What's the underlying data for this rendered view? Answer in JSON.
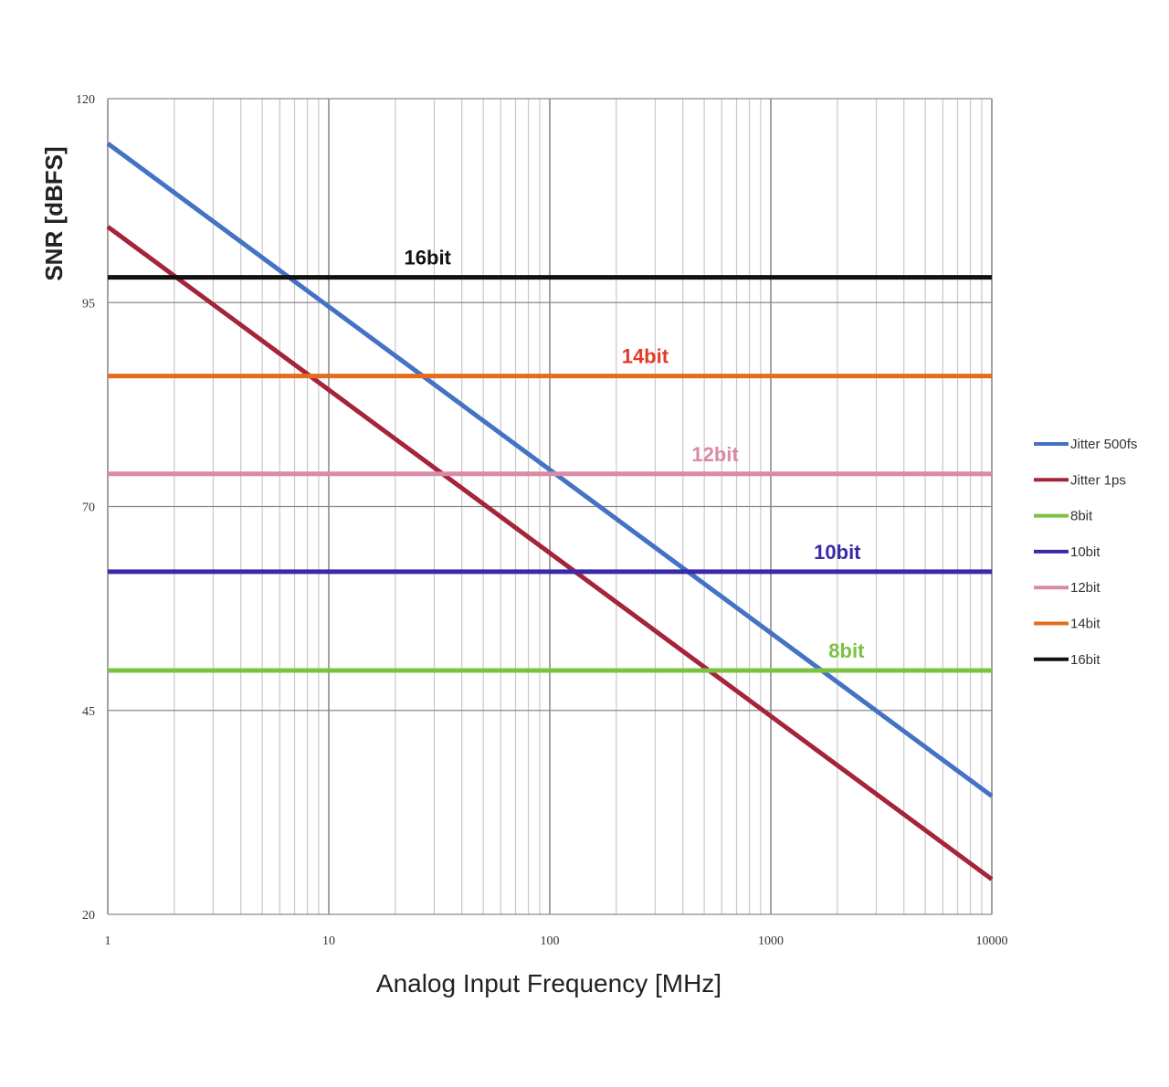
{
  "chart_data": {
    "type": "line",
    "xlabel": "Analog Input Frequency [MHz]",
    "ylabel": "SNR [dBFS]",
    "xscale": "log",
    "xlim": [
      1,
      10000
    ],
    "ylim": [
      20,
      120
    ],
    "x_ticks": [
      {
        "value": 1,
        "label": "1"
      },
      {
        "value": 10,
        "label": "10"
      },
      {
        "value": 100,
        "label": "100"
      },
      {
        "value": 1000,
        "label": "1000"
      },
      {
        "value": 10000,
        "label": "10000"
      }
    ],
    "y_ticks": [
      {
        "value": 20,
        "label": "20"
      },
      {
        "value": 45,
        "label": "45"
      },
      {
        "value": 70,
        "label": "70"
      },
      {
        "value": 95,
        "label": "95"
      },
      {
        "value": 120,
        "label": "120"
      }
    ],
    "grid": true,
    "legend_position": "right",
    "series": [
      {
        "name": "Jitter 500fs",
        "color": "#4472c4",
        "x": [
          1,
          10000
        ],
        "y": [
          114.5,
          34.5
        ]
      },
      {
        "name": "Jitter 1ps",
        "color": "#a5243a",
        "x": [
          1,
          10000
        ],
        "y": [
          104.3,
          24.3
        ]
      },
      {
        "name": "8bit",
        "color": "#7cc142",
        "x": [
          1,
          10000
        ],
        "y": [
          49.9,
          49.9
        ],
        "label": "8bit",
        "label_x": 2200
      },
      {
        "name": "10bit",
        "color": "#3a2aa8",
        "x": [
          1,
          10000
        ],
        "y": [
          62.0,
          62.0
        ],
        "label": "10bit",
        "label_x": 2000
      },
      {
        "name": "12bit",
        "color": "#d98aa6",
        "x": [
          1,
          10000
        ],
        "y": [
          74.0,
          74.0
        ],
        "label": "12bit",
        "label_x": 560
      },
      {
        "name": "14bit",
        "color": "#e46c1a",
        "x": [
          1,
          10000
        ],
        "y": [
          86.0,
          86.0
        ],
        "label": "14bit",
        "label_x": 270,
        "label_color": "#e33b2b"
      },
      {
        "name": "16bit",
        "color": "#111111",
        "x": [
          1,
          10000
        ],
        "y": [
          98.1,
          98.1
        ],
        "label": "16bit",
        "label_x": 28
      }
    ]
  }
}
